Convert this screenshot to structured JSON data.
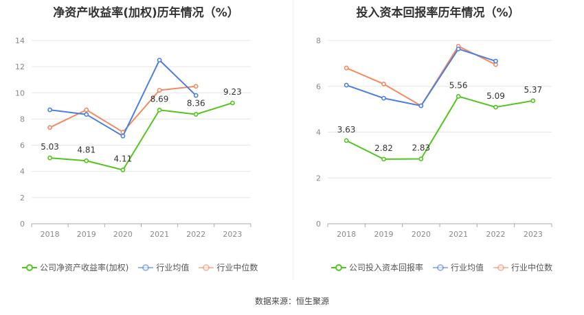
{
  "colors": {
    "company": "#52c41a",
    "avg": "#4a7ee0",
    "median": "#f4895f",
    "grid": "#e6e6e6",
    "axis": "#aaaaaa"
  },
  "source": "数据来源：恒生聚源",
  "chart_data": [
    {
      "type": "line",
      "title": "净资产收益率(加权)历年情况（%）",
      "categories": [
        "2018",
        "2019",
        "2020",
        "2021",
        "2022",
        "2023"
      ],
      "ylim": [
        0,
        14
      ],
      "yticks": [
        0,
        2,
        4,
        6,
        8,
        10,
        12,
        14
      ],
      "grid": true,
      "legend": "bottom",
      "series": [
        {
          "name": "公司净资产收益率(加权)",
          "color": "#52c41a",
          "values": [
            5.03,
            4.81,
            4.11,
            8.69,
            8.36,
            9.23
          ],
          "labels": [
            "5.03",
            "4.81",
            "4.11",
            "8.69",
            "8.36",
            "9.23"
          ]
        },
        {
          "name": "行业均值",
          "color": "#4a7ee0",
          "values": [
            8.7,
            8.35,
            6.7,
            12.5,
            9.8,
            null
          ]
        },
        {
          "name": "行业中位数",
          "color": "#f4895f",
          "values": [
            7.35,
            8.7,
            7.0,
            10.2,
            10.5,
            null
          ]
        }
      ]
    },
    {
      "type": "line",
      "title": "投入资本回报率历年情况（%）",
      "categories": [
        "2018",
        "2019",
        "2020",
        "2021",
        "2022",
        "2023"
      ],
      "ylim": [
        0,
        8
      ],
      "yticks": [
        0,
        2,
        4,
        6,
        8
      ],
      "grid": true,
      "legend": "bottom",
      "series": [
        {
          "name": "公司投入资本回报率",
          "color": "#52c41a",
          "values": [
            3.63,
            2.82,
            2.83,
            5.56,
            5.09,
            5.37
          ],
          "labels": [
            "3.63",
            "2.82",
            "2.83",
            "5.56",
            "5.09",
            "5.37"
          ]
        },
        {
          "name": "行业均值",
          "color": "#4a7ee0",
          "values": [
            6.05,
            5.48,
            5.15,
            7.63,
            7.1,
            null
          ]
        },
        {
          "name": "行业中位数",
          "color": "#f4895f",
          "values": [
            6.8,
            6.1,
            5.15,
            7.75,
            6.95,
            null
          ]
        }
      ]
    }
  ]
}
